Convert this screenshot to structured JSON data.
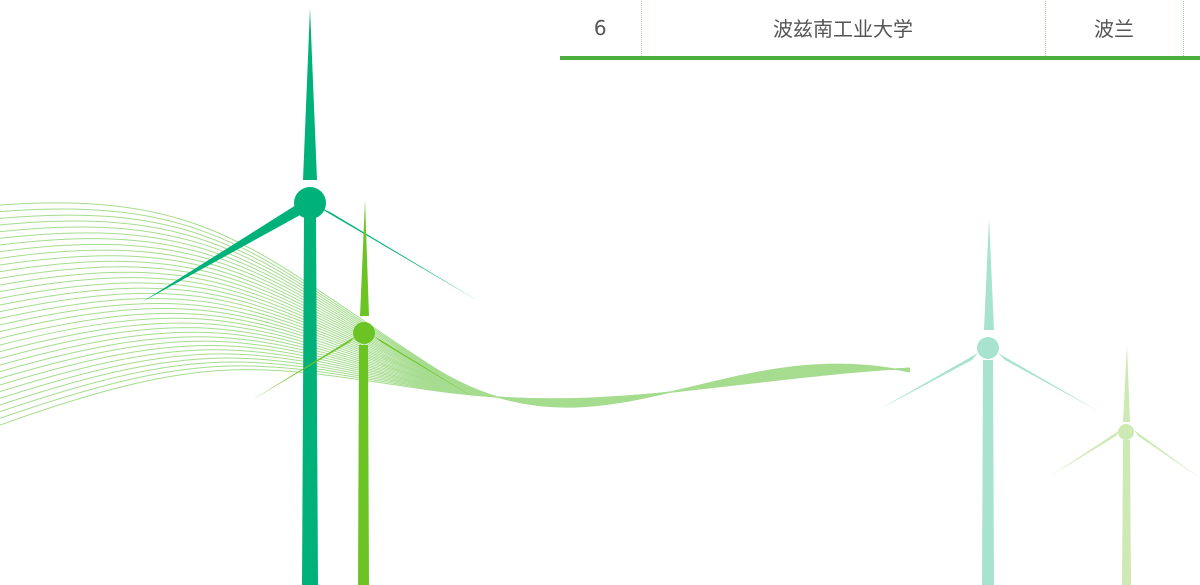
{
  "table": {
    "row": {
      "rank": "6",
      "university": "波兹南工业大学",
      "country": "波兰",
      "extra": ""
    }
  },
  "colors": {
    "accent_green": "#4caf3e",
    "turbine_dark": "#00b27a",
    "turbine_lime": "#6cc424",
    "turbine_pale": "#a7e3cf",
    "turbine_pale_lime": "#cdeab4",
    "wave": "#a6dc8f"
  }
}
